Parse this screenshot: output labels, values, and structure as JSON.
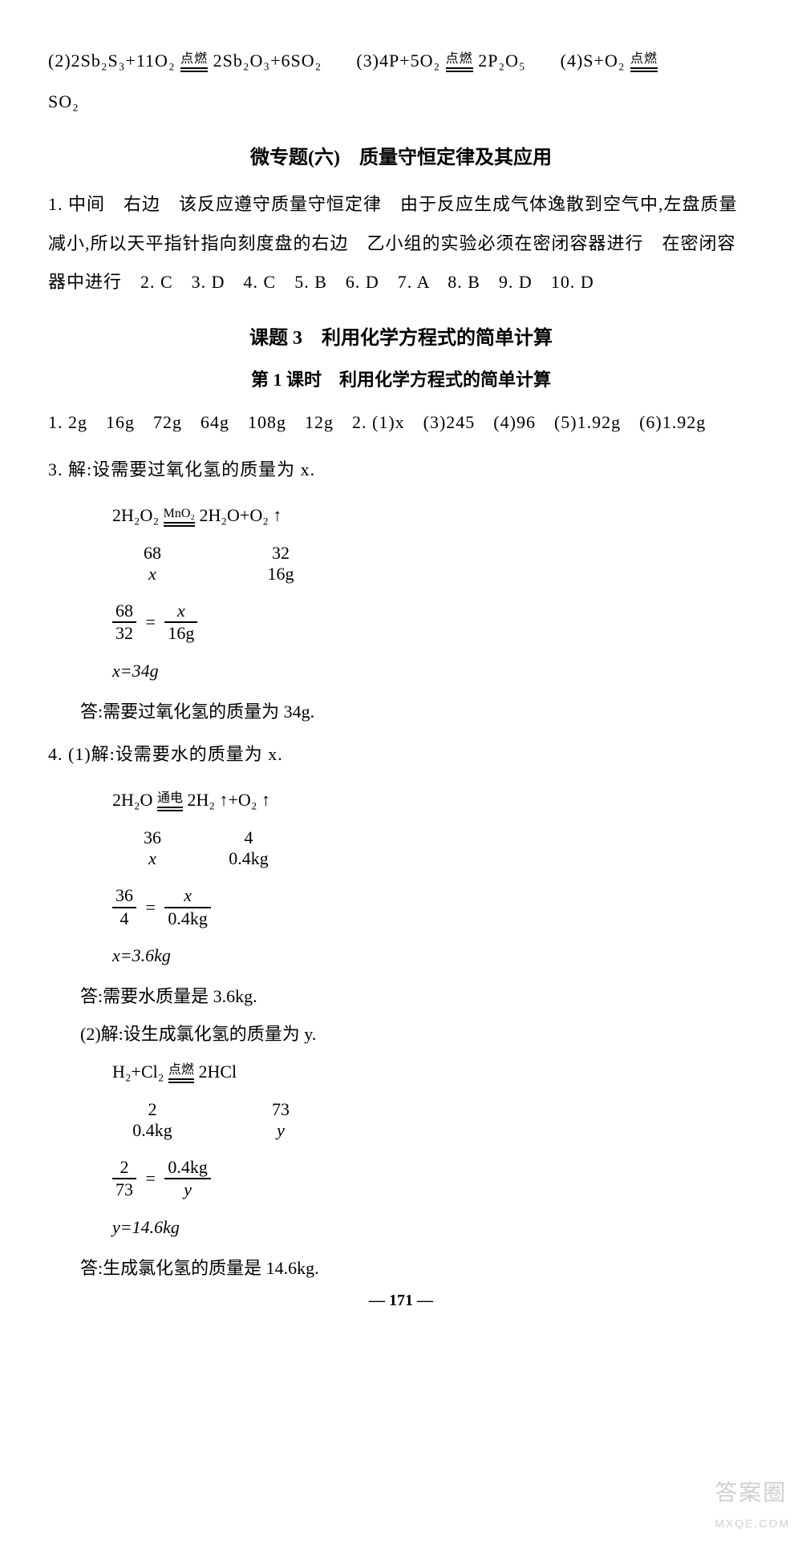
{
  "top_equations": {
    "eq2": "(2)2Sb₂S₃+11O₂",
    "eq2_cond": "点燃",
    "eq2_right": "2Sb₂O₃+6SO₂",
    "eq3": "(3)4P+5O₂",
    "eq3_cond": "点燃",
    "eq3_right": "2P₂O₅",
    "eq4": "(4)S+O₂",
    "eq4_cond": "点燃",
    "so2": "SO₂"
  },
  "section6": {
    "title": "微专题(六)　质量守恒定律及其应用",
    "q1": "1. 中间　右边　该反应遵守质量守恒定律　由于反应生成气体逸散到空气中,左盘质量减小,所以天平指针指向刻度盘的右边　乙小组的实验必须在密闭容器进行　在密闭容器中进行　2. C　3. D　4. C　5. B　6. D　7. A　8. B　9. D　10. D"
  },
  "topic3": {
    "title": "课题 3　利用化学方程式的简单计算",
    "subtitle": "第 1 课时　利用化学方程式的简单计算",
    "line1": "1. 2g　16g　72g　64g　108g　12g　2. (1)x　(3)245　(4)96　(5)1.92g　(6)1.92g",
    "q3_intro": "3. 解:设需要过氧化氢的质量为 x.",
    "q3_eq_left": "2H₂O₂",
    "q3_eq_cond": "MnO₂",
    "q3_eq_right": "2H₂O+O₂ ↑",
    "q3_mass1_a": "68",
    "q3_mass1_b": "32",
    "q3_mass2_a": "x",
    "q3_mass2_b": "16g",
    "q3_frac1_num": "68",
    "q3_frac1_den": "32",
    "q3_frac2_num": "x",
    "q3_frac2_den": "16g",
    "q3_result": "x=34g",
    "q3_answer": "答:需要过氧化氢的质量为 34g.",
    "q4_intro": "4. (1)解:设需要水的质量为 x.",
    "q4_eq_left": "2H₂O",
    "q4_eq_cond": "通电",
    "q4_eq_right": "2H₂ ↑+O₂ ↑",
    "q4_mass1_a": "36",
    "q4_mass1_b": "4",
    "q4_mass2_a": "x",
    "q4_mass2_b": "0.4kg",
    "q4_frac1_num": "36",
    "q4_frac1_den": "4",
    "q4_frac2_num": "x",
    "q4_frac2_den": "0.4kg",
    "q4_result": "x=3.6kg",
    "q4_answer": "答:需要水质量是 3.6kg.",
    "q4b_intro": "(2)解:设生成氯化氢的质量为 y.",
    "q4b_eq_left": "H₂+Cl₂",
    "q4b_eq_cond": "点燃",
    "q4b_eq_right": "2HCl",
    "q4b_mass1_a": "2",
    "q4b_mass1_b": "73",
    "q4b_mass2_a": "0.4kg",
    "q4b_mass2_b": "y",
    "q4b_frac1_num": "2",
    "q4b_frac1_den": "73",
    "q4b_frac2_num": "0.4kg",
    "q4b_frac2_den": "y",
    "q4b_result": "y=14.6kg",
    "q4b_answer": "答:生成氯化氢的质量是 14.6kg."
  },
  "page_number": "— 171 —",
  "watermark_main": "答案圈",
  "watermark_sub": "MXQE.COM"
}
